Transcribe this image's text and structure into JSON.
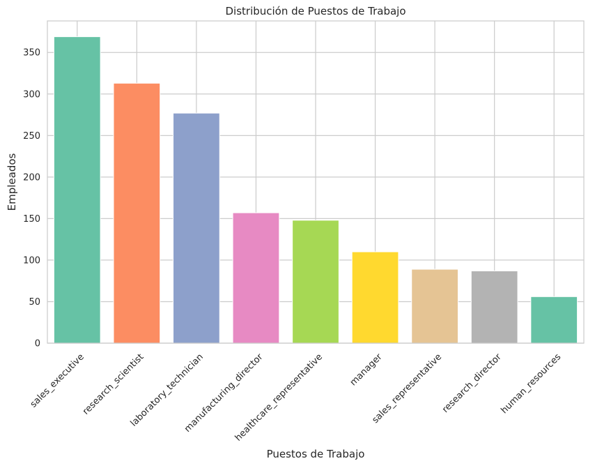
{
  "chart_data": {
    "type": "bar",
    "title": "Distribución de Puestos de Trabajo",
    "xlabel": "Puestos de Trabajo",
    "ylabel": "Empleados",
    "categories": [
      "sales_executive",
      "research_scientist",
      "laboratory_technician",
      "manufacturing_director",
      "healthcare_representative",
      "manager",
      "sales_representative",
      "research_director",
      "human_resources"
    ],
    "values": [
      369,
      313,
      277,
      157,
      148,
      110,
      89,
      87,
      56
    ],
    "colors": [
      "#66c2a5",
      "#fc8d62",
      "#8da0cb",
      "#e78ac3",
      "#a6d854",
      "#ffd92f",
      "#e5c494",
      "#b3b3b3",
      "#66c2a5"
    ],
    "ylim": [
      0,
      388
    ],
    "yticks": [
      0,
      50,
      100,
      150,
      200,
      250,
      300,
      350
    ],
    "grid": true,
    "legend": "none"
  }
}
